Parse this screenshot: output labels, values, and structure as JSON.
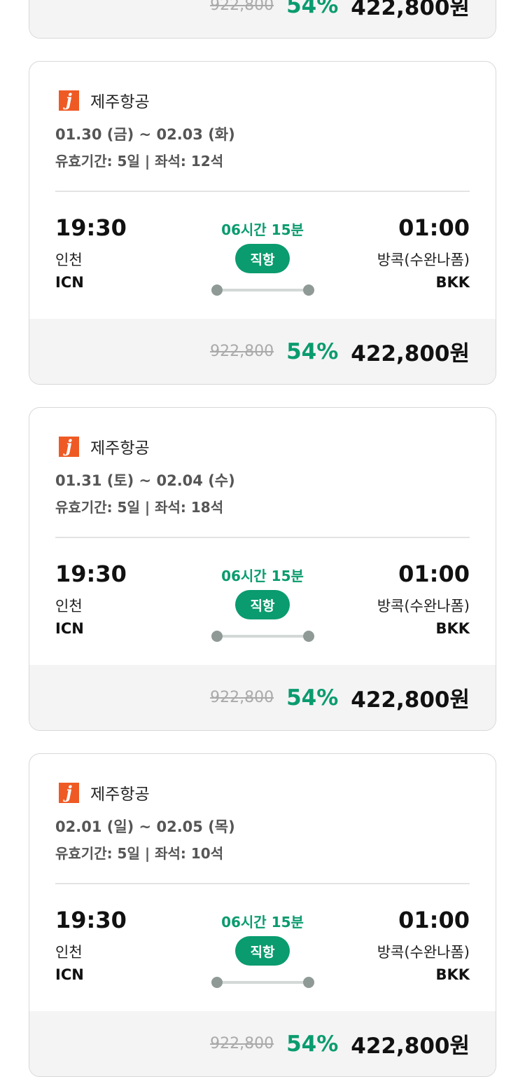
{
  "colors": {
    "accent": "#0a9b6e",
    "logo": "#ef5a24"
  },
  "top_partial": {
    "original_price": "922,800",
    "discount": "54%",
    "price": "422,800원"
  },
  "cards": [
    {
      "airline": "제주항공",
      "logo_letter": "j",
      "dates": "01.30 (금) ~ 02.03 (화)",
      "validity": "유효기간: 5일 | 좌석: 12석",
      "dep_time": "19:30",
      "dep_city": "인천",
      "dep_code": "ICN",
      "duration": "06시간 15분",
      "type": "직항",
      "arr_time": "01:00",
      "arr_city": "방콕(수완나폼)",
      "arr_code": "BKK",
      "original_price": "922,800",
      "discount": "54%",
      "price": "422,800원"
    },
    {
      "airline": "제주항공",
      "logo_letter": "j",
      "dates": "01.31 (토) ~ 02.04 (수)",
      "validity": "유효기간: 5일 | 좌석: 18석",
      "dep_time": "19:30",
      "dep_city": "인천",
      "dep_code": "ICN",
      "duration": "06시간 15분",
      "type": "직항",
      "arr_time": "01:00",
      "arr_city": "방콕(수완나폼)",
      "arr_code": "BKK",
      "original_price": "922,800",
      "discount": "54%",
      "price": "422,800원"
    },
    {
      "airline": "제주항공",
      "logo_letter": "j",
      "dates": "02.01 (일) ~ 02.05 (목)",
      "validity": "유효기간: 5일 | 좌석: 10석",
      "dep_time": "19:30",
      "dep_city": "인천",
      "dep_code": "ICN",
      "duration": "06시간 15분",
      "type": "직항",
      "arr_time": "01:00",
      "arr_city": "방콕(수완나폼)",
      "arr_code": "BKK",
      "original_price": "922,800",
      "discount": "54%",
      "price": "422,800원"
    }
  ]
}
